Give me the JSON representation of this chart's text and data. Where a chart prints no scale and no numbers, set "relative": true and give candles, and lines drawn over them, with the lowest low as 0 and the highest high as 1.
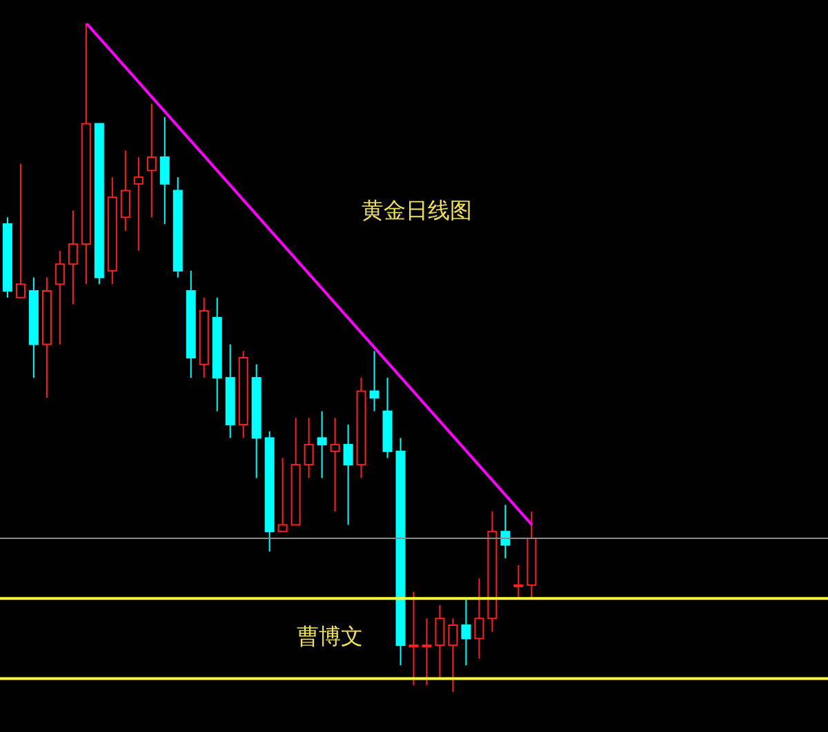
{
  "chart_data": {
    "type": "candlestick",
    "relative": true,
    "categories": [
      null,
      null,
      null,
      null,
      null,
      null,
      null,
      null,
      null,
      null,
      null,
      null,
      null,
      null,
      null,
      null,
      null,
      null,
      null,
      null,
      null,
      null,
      null,
      null,
      null,
      null,
      null,
      null,
      null,
      null,
      null,
      null,
      null,
      null,
      null,
      null,
      null,
      null,
      null,
      null,
      null
    ],
    "ohlc": [
      [
        0.7,
        0.71,
        0.59,
        0.6
      ],
      [
        0.59,
        0.79,
        0.59,
        0.61
      ],
      [
        0.6,
        0.62,
        0.47,
        0.52
      ],
      [
        0.52,
        0.62,
        0.44,
        0.6
      ],
      [
        0.61,
        0.66,
        0.52,
        0.64
      ],
      [
        0.64,
        0.72,
        0.58,
        0.67
      ],
      [
        0.67,
        1.0,
        0.61,
        0.85
      ],
      [
        0.85,
        0.85,
        0.61,
        0.62
      ],
      [
        0.63,
        0.77,
        0.61,
        0.74
      ],
      [
        0.71,
        0.81,
        0.69,
        0.75
      ],
      [
        0.76,
        0.8,
        0.66,
        0.77
      ],
      [
        0.78,
        0.88,
        0.71,
        0.8
      ],
      [
        0.8,
        0.86,
        0.7,
        0.76
      ],
      [
        0.75,
        0.77,
        0.62,
        0.63
      ],
      [
        0.6,
        0.63,
        0.47,
        0.5
      ],
      [
        0.49,
        0.59,
        0.47,
        0.57
      ],
      [
        0.56,
        0.59,
        0.42,
        0.47
      ],
      [
        0.47,
        0.52,
        0.38,
        0.4
      ],
      [
        0.4,
        0.51,
        0.38,
        0.5
      ],
      [
        0.47,
        0.49,
        0.32,
        0.38
      ],
      [
        0.38,
        0.39,
        0.21,
        0.24
      ],
      [
        0.24,
        0.35,
        0.24,
        0.25
      ],
      [
        0.25,
        0.41,
        0.25,
        0.34
      ],
      [
        0.34,
        0.41,
        0.32,
        0.37
      ],
      [
        0.38,
        0.42,
        0.32,
        0.37
      ],
      [
        0.36,
        0.41,
        0.27,
        0.37
      ],
      [
        0.37,
        0.4,
        0.25,
        0.34
      ],
      [
        0.34,
        0.47,
        0.32,
        0.45
      ],
      [
        0.45,
        0.51,
        0.42,
        0.44
      ],
      [
        0.42,
        0.47,
        0.35,
        0.36
      ],
      [
        0.36,
        0.38,
        0.04,
        0.07
      ],
      [
        0.07,
        0.15,
        0.01,
        0.07
      ],
      [
        0.07,
        0.11,
        0.01,
        0.07
      ],
      [
        0.07,
        0.13,
        0.02,
        0.11
      ],
      [
        0.07,
        0.11,
        0.0,
        0.1
      ],
      [
        0.1,
        0.14,
        0.04,
        0.08
      ],
      [
        0.08,
        0.17,
        0.05,
        0.11
      ],
      [
        0.11,
        0.27,
        0.09,
        0.24
      ],
      [
        0.24,
        0.28,
        0.2,
        0.22
      ],
      [
        0.16,
        0.19,
        0.14,
        0.16
      ],
      [
        0.16,
        0.27,
        0.14,
        0.23
      ]
    ],
    "colors": [
      "#00ffff",
      "#ff2020",
      "#00ffff",
      "#ff2020",
      "#ff2020",
      "#ff2020",
      "#ff2020",
      "#00ffff",
      "#ff2020",
      "#ff2020",
      "#ff2020",
      "#ff2020",
      "#00ffff",
      "#00ffff",
      "#00ffff",
      "#ff2020",
      "#00ffff",
      "#00ffff",
      "#ff2020",
      "#00ffff",
      "#00ffff",
      "#ff2020",
      "#ff2020",
      "#ff2020",
      "#00ffff",
      "#ff2020",
      "#00ffff",
      "#ff2020",
      "#00ffff",
      "#00ffff",
      "#00ffff",
      "#ff2020",
      "#ff2020",
      "#ff2020",
      "#ff2020",
      "#00ffff",
      "#ff2020",
      "#ff2020",
      "#00ffff",
      "#ff2020",
      "#ff2020"
    ],
    "series": [
      {
        "type": "line",
        "color": "#ff00ff",
        "values": [
          null,
          null,
          null,
          null,
          null,
          null,
          1.0,
          null,
          null,
          null,
          null,
          null,
          null,
          null,
          null,
          null,
          null,
          null,
          null,
          null,
          null,
          null,
          null,
          null,
          null,
          null,
          null,
          null,
          null,
          null,
          null,
          null,
          null,
          null,
          null,
          null,
          null,
          null,
          null,
          null,
          0.25
        ]
      }
    ],
    "ref_lines": [
      {
        "axis": "y",
        "value": 0.23,
        "color": "#8a8a8a"
      },
      {
        "axis": "y",
        "value": 0.14,
        "color": "#ffff33"
      },
      {
        "axis": "y",
        "value": 0.02,
        "color": "#ffff33"
      }
    ],
    "annotations": [
      "黄金日线图",
      "曹博文"
    ],
    "grid": false,
    "legend": false
  }
}
